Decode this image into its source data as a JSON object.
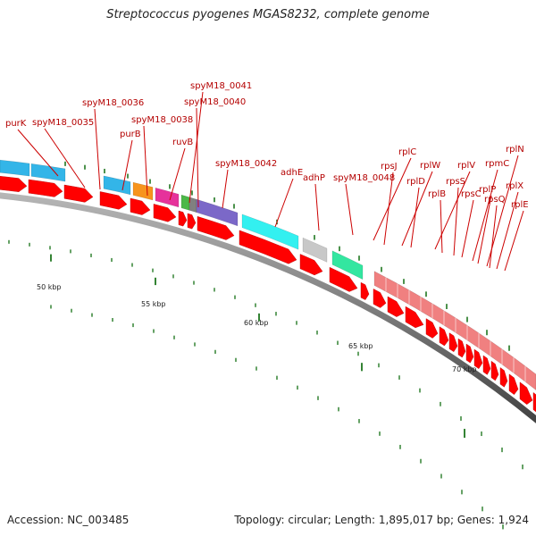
{
  "title": "Streptococcus pyogenes MGAS8232, complete genome",
  "accession": "Accession: NC_003485",
  "summary": "Topology: circular; Length: 1,895,017 bp; Genes: 1,924",
  "colors": {
    "cds": "#ff0000",
    "backbone": "#808080",
    "tick": "#006400",
    "label": "#b40000",
    "leader": "#cc0000"
  },
  "gene_labels": [
    "purK",
    "spyM18_0035",
    "spyM18_0036",
    "purB",
    "spyM18_0038",
    "ruvB",
    "spyM18_0041",
    "spyM18_0040",
    "spyM18_0042",
    "adhE",
    "adhP",
    "spyM18_0048",
    "rplC",
    "rpsJ",
    "rplW",
    "rplD",
    "rplV",
    "rplB",
    "rpsS",
    "rpsC",
    "rpmC",
    "rplP",
    "rplN",
    "rpsQ",
    "rplX",
    "rplE"
  ],
  "scale": {
    "ticks": [
      "50 kbp",
      "55 kbp",
      "60 kbp",
      "65 kbp",
      "70 kbp"
    ]
  }
}
